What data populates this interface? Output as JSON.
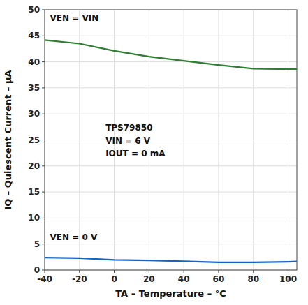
{
  "chart_data": {
    "type": "line",
    "xlabel": "TA – Temperature – °C",
    "ylabel": "IQ – Quiescent Current – μA",
    "x": [
      -40,
      -20,
      0,
      20,
      40,
      60,
      80,
      100,
      105
    ],
    "series": [
      {
        "color": "#2e7d32",
        "values": [
          44.2,
          43.5,
          42.1,
          41.0,
          40.2,
          39.4,
          38.7,
          38.6,
          38.6
        ]
      },
      {
        "color": "#1565c0",
        "values": [
          2.4,
          2.3,
          1.95,
          1.85,
          1.7,
          1.5,
          1.5,
          1.6,
          1.65
        ]
      }
    ],
    "xlim": [
      -40,
      105
    ],
    "ylim": [
      0,
      50
    ],
    "xticks": [
      -40,
      -20,
      0,
      20,
      40,
      60,
      80,
      100
    ],
    "yticks": [
      0,
      5,
      10,
      15,
      20,
      25,
      30,
      35,
      40,
      45,
      50
    ],
    "grid": true,
    "annotations": [
      {
        "text": "TPS79850",
        "x": -5,
        "y": 28
      },
      {
        "text": "VIN = 6 V",
        "x": -5,
        "y": 25.5
      },
      {
        "text": "IOUT = 0 mA",
        "x": -5,
        "y": 23.0
      },
      {
        "text": "VEN = VIN",
        "x": -37,
        "y": 49.0
      },
      {
        "text": "VEN = 0 V",
        "x": -37,
        "y": 7.0
      }
    ]
  }
}
